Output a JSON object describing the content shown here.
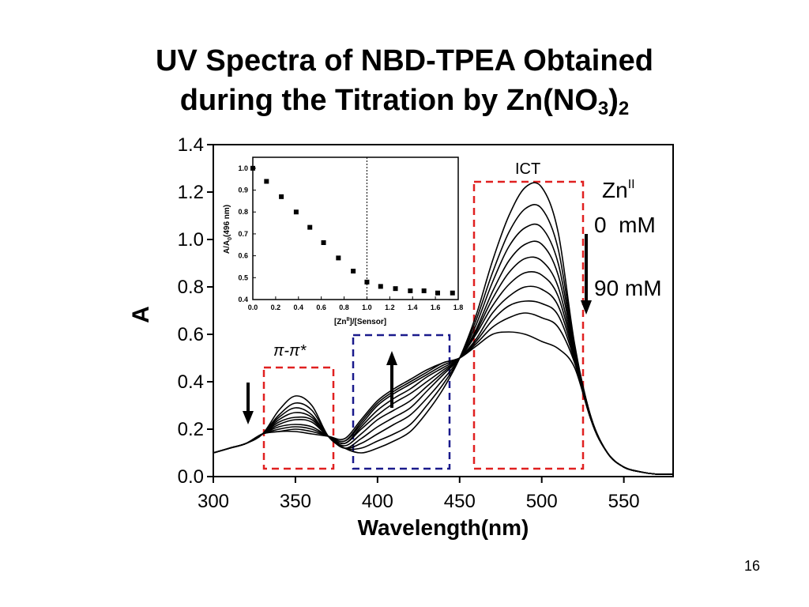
{
  "slide": {
    "title_line1": "UV Spectra of NBD-TPEA Obtained",
    "title_line2_prefix": "during the Titration by Zn(NO",
    "title_line2_sub1": "3",
    "title_line2_close": ")",
    "title_line2_sub2": "2",
    "page_number": "16"
  },
  "chart_data": [
    {
      "type": "line",
      "xlabel": "Wavelength(nm)",
      "ylabel": "A",
      "xlim": [
        300,
        580
      ],
      "ylim": [
        0.0,
        1.4
      ],
      "xticks": [
        "300",
        "350",
        "400",
        "450",
        "500",
        "550"
      ],
      "yticks": [
        "0.0",
        "0.2",
        "0.4",
        "0.6",
        "0.8",
        "1.0",
        "1.2",
        "1.4"
      ],
      "series_count": 10,
      "x": [
        300,
        310,
        320,
        330,
        340,
        350,
        360,
        370,
        380,
        390,
        400,
        410,
        420,
        430,
        440,
        450,
        460,
        470,
        480,
        490,
        500,
        510,
        520,
        530,
        540,
        550,
        560,
        570,
        580
      ],
      "series": [
        {
          "values": [
            0.1,
            0.12,
            0.14,
            0.18,
            0.28,
            0.34,
            0.3,
            0.17,
            0.12,
            0.1,
            0.12,
            0.15,
            0.19,
            0.27,
            0.37,
            0.5,
            0.68,
            0.91,
            1.1,
            1.22,
            1.22,
            1.03,
            0.56,
            0.25,
            0.1,
            0.04,
            0.02,
            0.01,
            0.01
          ]
        },
        {
          "values": [
            0.1,
            0.12,
            0.14,
            0.18,
            0.26,
            0.31,
            0.28,
            0.17,
            0.12,
            0.12,
            0.15,
            0.18,
            0.22,
            0.3,
            0.39,
            0.5,
            0.66,
            0.86,
            1.03,
            1.13,
            1.13,
            0.96,
            0.55,
            0.25,
            0.1,
            0.04,
            0.02,
            0.01,
            0.01
          ]
        },
        {
          "values": [
            0.1,
            0.12,
            0.14,
            0.18,
            0.25,
            0.29,
            0.26,
            0.17,
            0.12,
            0.14,
            0.18,
            0.22,
            0.26,
            0.33,
            0.41,
            0.5,
            0.64,
            0.82,
            0.97,
            1.05,
            1.05,
            0.9,
            0.54,
            0.25,
            0.1,
            0.04,
            0.02,
            0.01,
            0.01
          ]
        },
        {
          "values": [
            0.1,
            0.12,
            0.14,
            0.18,
            0.24,
            0.27,
            0.25,
            0.17,
            0.12,
            0.16,
            0.21,
            0.25,
            0.29,
            0.36,
            0.43,
            0.5,
            0.62,
            0.78,
            0.91,
            0.98,
            0.98,
            0.85,
            0.53,
            0.24,
            0.1,
            0.04,
            0.02,
            0.01,
            0.01
          ]
        },
        {
          "values": [
            0.1,
            0.12,
            0.14,
            0.18,
            0.23,
            0.25,
            0.24,
            0.17,
            0.13,
            0.18,
            0.24,
            0.28,
            0.32,
            0.38,
            0.44,
            0.5,
            0.61,
            0.75,
            0.86,
            0.92,
            0.91,
            0.8,
            0.52,
            0.24,
            0.1,
            0.04,
            0.02,
            0.01,
            0.01
          ]
        },
        {
          "values": [
            0.1,
            0.12,
            0.14,
            0.18,
            0.22,
            0.24,
            0.23,
            0.17,
            0.14,
            0.2,
            0.26,
            0.31,
            0.35,
            0.4,
            0.45,
            0.5,
            0.6,
            0.72,
            0.81,
            0.86,
            0.85,
            0.76,
            0.51,
            0.24,
            0.1,
            0.04,
            0.02,
            0.01,
            0.01
          ]
        },
        {
          "values": [
            0.1,
            0.12,
            0.14,
            0.18,
            0.21,
            0.22,
            0.21,
            0.17,
            0.14,
            0.21,
            0.28,
            0.33,
            0.37,
            0.42,
            0.46,
            0.5,
            0.58,
            0.69,
            0.76,
            0.8,
            0.79,
            0.72,
            0.5,
            0.24,
            0.1,
            0.04,
            0.02,
            0.01,
            0.01
          ]
        },
        {
          "values": [
            0.1,
            0.12,
            0.14,
            0.18,
            0.2,
            0.21,
            0.2,
            0.17,
            0.15,
            0.22,
            0.3,
            0.35,
            0.39,
            0.43,
            0.47,
            0.5,
            0.57,
            0.66,
            0.72,
            0.74,
            0.73,
            0.68,
            0.49,
            0.24,
            0.1,
            0.04,
            0.02,
            0.01,
            0.01
          ]
        },
        {
          "values": [
            0.1,
            0.12,
            0.14,
            0.18,
            0.19,
            0.2,
            0.19,
            0.17,
            0.15,
            0.23,
            0.31,
            0.36,
            0.4,
            0.44,
            0.48,
            0.5,
            0.56,
            0.63,
            0.67,
            0.69,
            0.67,
            0.63,
            0.48,
            0.24,
            0.1,
            0.04,
            0.02,
            0.01,
            0.01
          ]
        },
        {
          "values": [
            0.1,
            0.12,
            0.14,
            0.18,
            0.19,
            0.19,
            0.18,
            0.17,
            0.16,
            0.24,
            0.32,
            0.37,
            0.41,
            0.45,
            0.48,
            0.5,
            0.55,
            0.6,
            0.61,
            0.6,
            0.57,
            0.54,
            0.46,
            0.24,
            0.1,
            0.04,
            0.02,
            0.01,
            0.01
          ]
        }
      ],
      "annotations": {
        "ict": "ICT",
        "pi": "π-π*",
        "zn": "Zn",
        "zn_sup": "II",
        "conc_start": "0  mM",
        "conc_end": "90 mM"
      }
    },
    {
      "type": "scatter",
      "xlabel_main": "[Zn",
      "xlabel_sup": "II",
      "xlabel_rest": "]/[Sensor]",
      "ylabel_main": "A/A",
      "ylabel_sub": "0",
      "ylabel_rest": "(496 nm)",
      "xlim": [
        0.0,
        1.8
      ],
      "ylim": [
        0.4,
        1.05
      ],
      "xticks": [
        "0.0",
        "0.2",
        "0.4",
        "0.6",
        "0.8",
        "1.0",
        "1.2",
        "1.4",
        "1.6",
        "1.8"
      ],
      "yticks": [
        "0.4",
        "0.5",
        "0.6",
        "0.7",
        "0.8",
        "0.9",
        "1.0"
      ],
      "reference_line_x": 1.0,
      "points": [
        {
          "x": 0.0,
          "y": 1.0
        },
        {
          "x": 0.12,
          "y": 0.94
        },
        {
          "x": 0.25,
          "y": 0.87
        },
        {
          "x": 0.38,
          "y": 0.8
        },
        {
          "x": 0.5,
          "y": 0.73
        },
        {
          "x": 0.62,
          "y": 0.66
        },
        {
          "x": 0.75,
          "y": 0.59
        },
        {
          "x": 0.88,
          "y": 0.53
        },
        {
          "x": 1.0,
          "y": 0.48
        },
        {
          "x": 1.12,
          "y": 0.46
        },
        {
          "x": 1.25,
          "y": 0.45
        },
        {
          "x": 1.38,
          "y": 0.44
        },
        {
          "x": 1.5,
          "y": 0.44
        },
        {
          "x": 1.62,
          "y": 0.43
        },
        {
          "x": 1.75,
          "y": 0.43
        }
      ]
    }
  ],
  "colors": {
    "red_box": "#e02020",
    "blue_box": "#1a1a8c",
    "curve": "#000000"
  }
}
